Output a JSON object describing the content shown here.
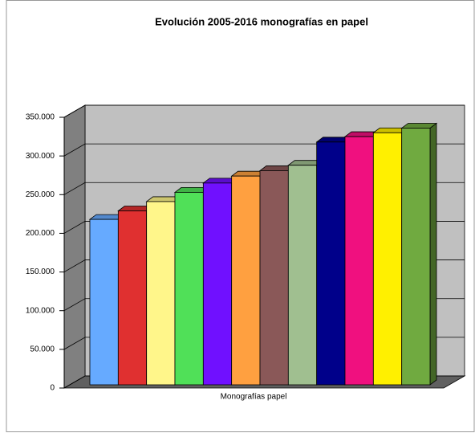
{
  "chart_data": {
    "type": "bar3d",
    "title": "Evolución 2005-2016 monografías en papel",
    "xlabel": "Monografías papel",
    "series": [
      {
        "color": "#66aaff",
        "values": [
          218000
        ]
      },
      {
        "color": "#e03030",
        "values": [
          229000
        ]
      },
      {
        "color": "#fff68a",
        "values": [
          241000
        ]
      },
      {
        "color": "#50e058",
        "values": [
          253000
        ]
      },
      {
        "color": "#7010ff",
        "values": [
          265000
        ]
      },
      {
        "color": "#ffa040",
        "values": [
          274000
        ]
      },
      {
        "color": "#8a5858",
        "values": [
          281000
        ]
      },
      {
        "color": "#a0bf90",
        "values": [
          288000
        ]
      },
      {
        "color": "#00008a",
        "values": [
          318000
        ]
      },
      {
        "color": "#f0107f",
        "values": [
          325000
        ]
      },
      {
        "color": "#fff000",
        "values": [
          330000
        ]
      },
      {
        "color": "#70aa40",
        "values": [
          336000
        ]
      }
    ],
    "ylim": [
      0,
      350000
    ],
    "yticks": [
      0,
      {
        "value": 50000,
        "label": "50.000"
      },
      {
        "value": 100000,
        "label": "100.000"
      },
      {
        "value": 150000,
        "label": "150.000"
      },
      {
        "value": 200000,
        "label": "200.000"
      },
      {
        "value": 250000,
        "label": "250.000"
      },
      {
        "value": 300000,
        "label": "300.000"
      },
      {
        "value": 350000,
        "label": "350.000"
      }
    ],
    "grid": true
  }
}
